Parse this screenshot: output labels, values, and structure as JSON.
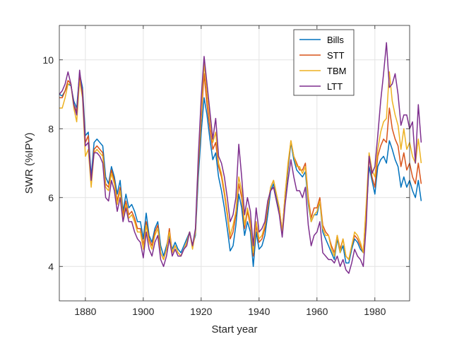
{
  "chart_data": {
    "type": "line",
    "title": "",
    "xlabel": "Start year",
    "ylabel": "SWR (%IPV)",
    "xlim": [
      1871,
      1992
    ],
    "ylim": [
      3,
      11
    ],
    "xticks": [
      "1880",
      "1900",
      "1920",
      "1940",
      "1960",
      "1980"
    ],
    "yticks": [
      "4",
      "6",
      "8",
      "10"
    ],
    "grid": true,
    "legend_position": "top-right",
    "x_start": 1871,
    "series": [
      {
        "name": "Bills",
        "color": "#0072BD",
        "values": [
          9.0,
          8.95,
          9.1,
          9.3,
          9.25,
          8.8,
          8.6,
          9.6,
          9.2,
          7.8,
          7.9,
          6.6,
          7.6,
          7.7,
          7.6,
          7.5,
          6.6,
          6.4,
          6.9,
          6.6,
          6.1,
          6.5,
          5.6,
          6.1,
          5.7,
          5.8,
          5.6,
          5.3,
          5.3,
          4.8,
          5.55,
          4.9,
          4.7,
          5.1,
          5.3,
          4.6,
          4.3,
          4.6,
          4.9,
          4.5,
          4.7,
          4.5,
          4.4,
          4.6,
          4.8,
          5.0,
          4.6,
          4.9,
          6.6,
          7.9,
          8.9,
          8.4,
          7.7,
          7.1,
          7.3,
          6.6,
          6.2,
          5.7,
          5.1,
          4.45,
          4.6,
          5.2,
          6.1,
          5.7,
          4.9,
          5.3,
          5.0,
          4.0,
          5.0,
          4.5,
          4.6,
          4.9,
          5.5,
          6.2,
          6.4,
          6.0,
          5.6,
          5.0,
          6.0,
          6.8,
          7.6,
          7.1,
          6.8,
          6.7,
          6.6,
          6.75,
          5.8,
          5.3,
          5.5,
          5.5,
          5.9,
          5.0,
          4.8,
          4.6,
          4.4,
          4.2,
          4.8,
          4.4,
          4.6,
          4.1,
          4.1,
          4.5,
          4.8,
          4.7,
          4.5,
          4.4,
          5.5,
          6.9,
          6.5,
          6.1,
          6.9,
          7.1,
          7.2,
          7.0,
          7.65,
          7.4,
          7.1,
          6.9,
          6.3,
          6.6,
          6.3,
          6.5,
          6.2,
          6.0,
          6.5,
          5.9
        ]
      },
      {
        "name": "STT",
        "color": "#D95319",
        "values": [
          8.9,
          8.9,
          9.1,
          9.4,
          9.3,
          8.7,
          8.5,
          9.5,
          9.1,
          7.6,
          7.8,
          6.4,
          7.4,
          7.5,
          7.4,
          7.3,
          6.4,
          6.3,
          6.8,
          6.5,
          5.9,
          6.3,
          5.5,
          5.9,
          5.5,
          5.6,
          5.4,
          5.1,
          5.1,
          4.6,
          5.3,
          4.8,
          4.6,
          5.0,
          5.2,
          4.4,
          4.2,
          4.5,
          5.1,
          4.4,
          4.6,
          4.4,
          4.3,
          4.5,
          4.7,
          5.0,
          4.6,
          5.0,
          6.9,
          8.3,
          9.6,
          8.7,
          8.0,
          7.4,
          7.6,
          6.9,
          6.6,
          6.1,
          5.5,
          4.8,
          5.0,
          5.5,
          6.4,
          6.0,
          5.1,
          5.6,
          5.2,
          4.3,
          5.2,
          4.7,
          4.8,
          5.1,
          5.7,
          6.3,
          6.5,
          6.1,
          5.7,
          5.0,
          6.1,
          6.9,
          7.65,
          7.2,
          7.0,
          6.8,
          6.8,
          7.0,
          6.0,
          5.4,
          5.7,
          5.7,
          6.0,
          5.2,
          5.0,
          4.9,
          4.6,
          4.4,
          4.9,
          4.5,
          4.8,
          4.3,
          4.2,
          4.6,
          4.9,
          4.8,
          4.6,
          4.4,
          5.7,
          7.2,
          6.6,
          6.3,
          7.2,
          7.5,
          7.7,
          7.6,
          8.6,
          8.0,
          7.7,
          7.5,
          6.9,
          7.3,
          6.8,
          7.0,
          6.6,
          6.4,
          7.0,
          6.4
        ]
      },
      {
        "name": "TBM",
        "color": "#EDB120",
        "values": [
          8.6,
          8.6,
          8.9,
          9.3,
          9.3,
          8.6,
          8.2,
          9.4,
          8.9,
          7.2,
          7.4,
          6.3,
          7.3,
          7.4,
          7.3,
          7.2,
          6.3,
          6.2,
          6.7,
          6.4,
          5.8,
          6.2,
          5.4,
          5.8,
          5.4,
          5.5,
          5.3,
          5.0,
          5.0,
          4.5,
          5.2,
          4.7,
          4.5,
          4.9,
          5.1,
          4.4,
          4.2,
          4.5,
          5.0,
          4.4,
          4.6,
          4.4,
          4.3,
          4.5,
          4.7,
          5.0,
          4.5,
          5.0,
          7.0,
          8.5,
          9.9,
          9.0,
          8.3,
          7.6,
          7.9,
          7.0,
          6.7,
          6.2,
          5.6,
          4.9,
          5.2,
          5.6,
          6.6,
          6.2,
          5.2,
          5.7,
          5.3,
          4.4,
          5.3,
          4.8,
          4.9,
          5.2,
          5.8,
          6.3,
          6.5,
          6.1,
          5.7,
          5.0,
          6.1,
          7.0,
          7.65,
          7.2,
          6.9,
          6.9,
          6.7,
          6.9,
          5.9,
          5.3,
          5.5,
          5.6,
          5.9,
          5.1,
          4.9,
          4.9,
          4.5,
          4.3,
          4.9,
          4.4,
          4.8,
          4.3,
          4.2,
          4.6,
          5.0,
          4.9,
          4.7,
          4.4,
          5.8,
          7.3,
          6.8,
          6.6,
          7.4,
          7.9,
          8.2,
          8.3,
          9.65,
          8.8,
          8.4,
          8.1,
          7.4,
          8.0,
          7.4,
          7.6,
          7.2,
          7.0,
          7.7,
          7.0
        ]
      },
      {
        "name": "LTT",
        "color": "#7E2F8E",
        "values": [
          9.0,
          9.1,
          9.3,
          9.65,
          9.3,
          8.7,
          8.4,
          9.7,
          9.0,
          7.5,
          7.6,
          6.5,
          7.3,
          7.3,
          7.2,
          7.0,
          6.0,
          5.9,
          6.5,
          6.2,
          5.6,
          6.0,
          5.3,
          5.7,
          5.3,
          5.3,
          5.0,
          4.8,
          4.7,
          4.25,
          5.0,
          4.5,
          4.3,
          4.7,
          4.9,
          4.2,
          4.0,
          4.3,
          4.8,
          4.3,
          4.5,
          4.3,
          4.3,
          4.5,
          4.6,
          5.0,
          4.6,
          5.1,
          7.2,
          8.9,
          10.1,
          9.3,
          8.5,
          7.7,
          8.3,
          7.2,
          7.0,
          6.6,
          6.0,
          5.3,
          5.5,
          6.0,
          7.55,
          6.6,
          5.5,
          6.0,
          5.6,
          4.6,
          5.7,
          5.0,
          5.1,
          5.3,
          5.9,
          6.2,
          6.3,
          5.9,
          5.5,
          4.85,
          5.8,
          6.5,
          7.1,
          6.6,
          6.2,
          6.2,
          6.0,
          6.3,
          5.2,
          4.6,
          4.9,
          5.0,
          5.3,
          4.4,
          4.3,
          4.2,
          4.2,
          4.1,
          4.3,
          4.0,
          4.2,
          3.9,
          3.8,
          4.1,
          4.5,
          4.3,
          4.2,
          4.0,
          5.2,
          7.2,
          6.7,
          6.9,
          7.8,
          8.8,
          9.6,
          10.5,
          9.2,
          9.3,
          9.6,
          9.0,
          8.1,
          8.4,
          8.4,
          8.0,
          8.2,
          7.0,
          8.7,
          7.6
        ]
      }
    ]
  }
}
